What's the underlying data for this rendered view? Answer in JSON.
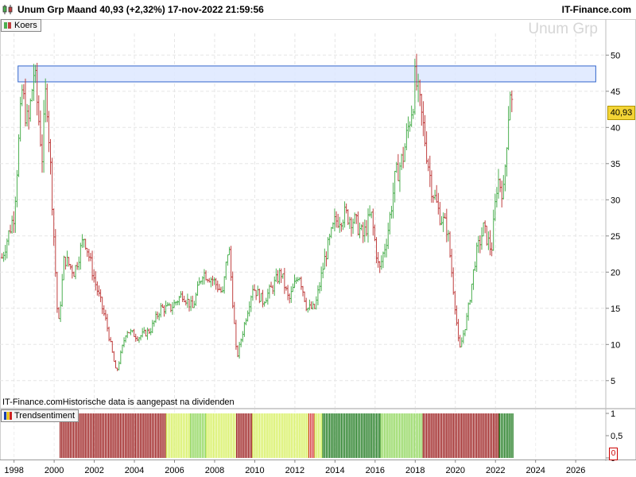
{
  "header": {
    "title": "Unum Grp Maand 40,93 (+2,32%) 17-nov-2022 21:59:56",
    "source": "IT-Finance.com"
  },
  "price_panel": {
    "tag": "Koers",
    "watermark": "Unum Grp",
    "last_price": "40,93",
    "note": "IT-Finance.comHistorische data is aangepast na dividenden"
  },
  "trend_panel": {
    "tag": "Trendsentiment",
    "last_value": "0"
  },
  "colors": {
    "up": "#4caf50",
    "down": "#c04040",
    "band_fill": "#dde8ff",
    "band_stroke": "#3366cc",
    "trend_dark_red": "#9b1c1c",
    "trend_red": "#d84545",
    "trend_yellow_green": "#d7f060",
    "trend_light_green": "#8fd65a",
    "trend_dark_green": "#1e7a1e",
    "last_price_bg": "#f3d436"
  },
  "chart_data": [
    {
      "type": "ohlc",
      "title": "Koers",
      "x_ticks": [
        "1998",
        "2000",
        "2002",
        "2004",
        "2006",
        "2008",
        "2010",
        "2012",
        "2014",
        "2016",
        "2018",
        "2020",
        "2022",
        "2024",
        "2026"
      ],
      "xlim": [
        1997.3,
        2027.5
      ],
      "ylim": [
        3,
        53
      ],
      "y_ticks": [
        "5",
        "10",
        "15",
        "20",
        "25",
        "30",
        "35",
        "40",
        "45",
        "50"
      ],
      "grid": true,
      "resistance_band": {
        "from": 1998.2,
        "to": 2027.0,
        "low": 46.3,
        "high": 48.5
      },
      "path": [
        [
          1997.4,
          22
        ],
        [
          1998.0,
          28
        ],
        [
          1998.4,
          45
        ],
        [
          1998.7,
          40
        ],
        [
          1999.0,
          48
        ],
        [
          1999.4,
          36
        ],
        [
          1999.6,
          46
        ],
        [
          1999.9,
          30
        ],
        [
          2000.2,
          12
        ],
        [
          2000.5,
          22
        ],
        [
          2001.0,
          20
        ],
        [
          2001.5,
          25
        ],
        [
          2002.0,
          19
        ],
        [
          2002.6,
          13
        ],
        [
          2003.1,
          6
        ],
        [
          2003.6,
          12
        ],
        [
          2004.2,
          11
        ],
        [
          2004.8,
          12
        ],
        [
          2005.3,
          15
        ],
        [
          2005.8,
          15
        ],
        [
          2006.4,
          17
        ],
        [
          2006.9,
          15
        ],
        [
          2007.4,
          20
        ],
        [
          2007.9,
          19
        ],
        [
          2008.4,
          17
        ],
        [
          2008.7,
          24
        ],
        [
          2009.1,
          8
        ],
        [
          2009.5,
          13
        ],
        [
          2009.9,
          18
        ],
        [
          2010.4,
          16
        ],
        [
          2010.9,
          18
        ],
        [
          2011.3,
          20
        ],
        [
          2011.7,
          16
        ],
        [
          2012.2,
          20
        ],
        [
          2012.6,
          15
        ],
        [
          2013.0,
          15
        ],
        [
          2013.5,
          22
        ],
        [
          2014.0,
          27
        ],
        [
          2014.5,
          28
        ],
        [
          2015.0,
          27
        ],
        [
          2015.4,
          25
        ],
        [
          2015.8,
          28
        ],
        [
          2016.2,
          20
        ],
        [
          2016.6,
          25
        ],
        [
          2017.0,
          33
        ],
        [
          2017.4,
          36
        ],
        [
          2017.9,
          44
        ],
        [
          2018.0,
          47
        ],
        [
          2018.4,
          40
        ],
        [
          2018.8,
          32
        ],
        [
          2019.2,
          28
        ],
        [
          2019.6,
          26
        ],
        [
          2020.0,
          15
        ],
        [
          2020.2,
          9
        ],
        [
          2020.6,
          14
        ],
        [
          2021.0,
          22
        ],
        [
          2021.4,
          26
        ],
        [
          2021.8,
          23
        ],
        [
          2022.1,
          33
        ],
        [
          2022.4,
          31
        ],
        [
          2022.6,
          40
        ],
        [
          2022.75,
          46
        ],
        [
          2022.87,
          40.93
        ]
      ]
    },
    {
      "type": "bar",
      "title": "Trendsentiment",
      "xlim": [
        1997.3,
        2027.5
      ],
      "ylim": [
        0,
        1
      ],
      "y_ticks": [
        "1",
        "0,5",
        "0"
      ],
      "segments": [
        {
          "from": 2000.3,
          "to": 2005.6,
          "value": 1,
          "color": "trend_dark_red"
        },
        {
          "from": 2005.6,
          "to": 2006.8,
          "value": 1,
          "color": "trend_yellow_green"
        },
        {
          "from": 2006.8,
          "to": 2007.6,
          "value": 1,
          "color": "trend_light_green"
        },
        {
          "from": 2007.6,
          "to": 2009.1,
          "value": 1,
          "color": "trend_yellow_green"
        },
        {
          "from": 2009.1,
          "to": 2009.9,
          "value": 1,
          "color": "trend_dark_red"
        },
        {
          "from": 2009.9,
          "to": 2012.7,
          "value": 1,
          "color": "trend_yellow_green"
        },
        {
          "from": 2012.7,
          "to": 2013.0,
          "value": 1,
          "color": "trend_red"
        },
        {
          "from": 2013.0,
          "to": 2013.4,
          "value": 1,
          "color": "trend_yellow_green"
        },
        {
          "from": 2013.4,
          "to": 2016.3,
          "value": 1,
          "color": "trend_dark_green"
        },
        {
          "from": 2016.3,
          "to": 2018.4,
          "value": 1,
          "color": "trend_light_green"
        },
        {
          "from": 2018.4,
          "to": 2022.2,
          "value": 1,
          "color": "trend_dark_red"
        },
        {
          "from": 2022.2,
          "to": 2022.9,
          "value": 1,
          "color": "trend_dark_green"
        }
      ]
    }
  ]
}
